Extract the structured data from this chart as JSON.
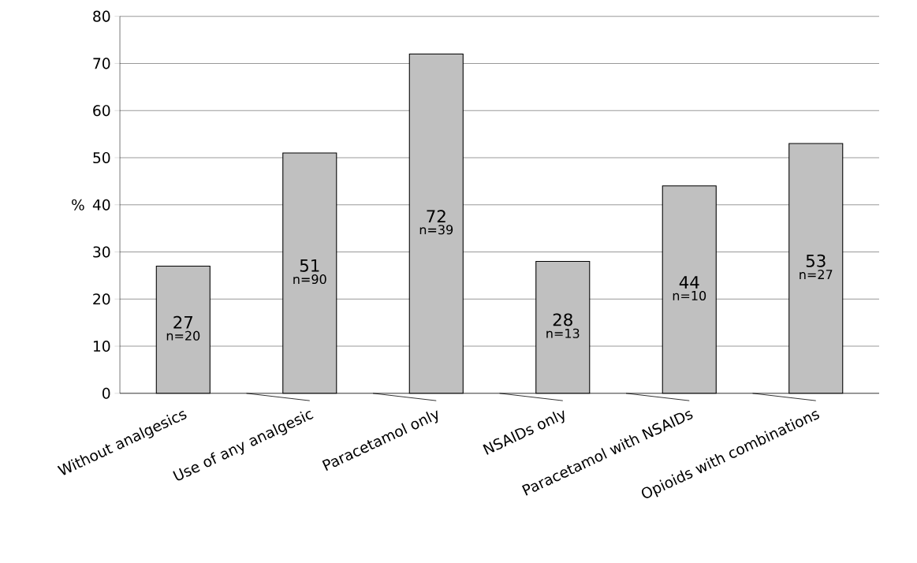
{
  "chart_data": {
    "type": "bar",
    "ylabel": "%",
    "categories": [
      "Without analgesics",
      "Use of any analgesic",
      "Paracetamol only",
      "NSAIDs only",
      "Paracetamol with NSAIDs",
      "Opioids with combinations"
    ],
    "values": [
      27,
      51,
      72,
      28,
      44,
      53
    ],
    "color": "#c0c0c0",
    "ylim": [
      0,
      80
    ],
    "yticks": [
      0,
      10,
      20,
      30,
      40,
      50,
      60,
      70,
      80
    ],
    "grid": "y",
    "data_labels": true,
    "annotations": [
      "n=20",
      "n=90",
      "n=39",
      "n=13",
      "n=10",
      "n=27"
    ]
  }
}
